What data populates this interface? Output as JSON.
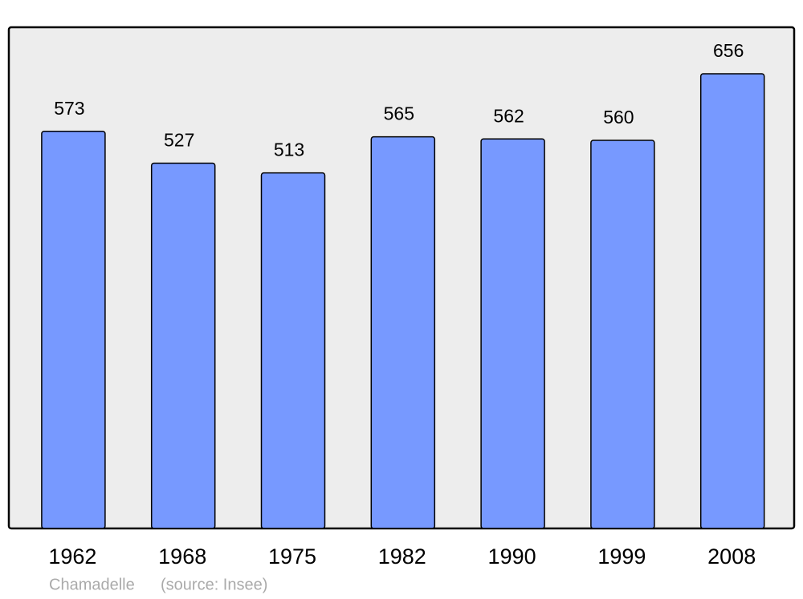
{
  "chart_data": {
    "type": "bar",
    "categories": [
      "1962",
      "1968",
      "1975",
      "1982",
      "1990",
      "1999",
      "2008"
    ],
    "values": [
      573,
      527,
      513,
      565,
      562,
      560,
      656
    ],
    "color": "#7799ff",
    "caption": "Chamadelle",
    "source": "(source: Insee)"
  }
}
